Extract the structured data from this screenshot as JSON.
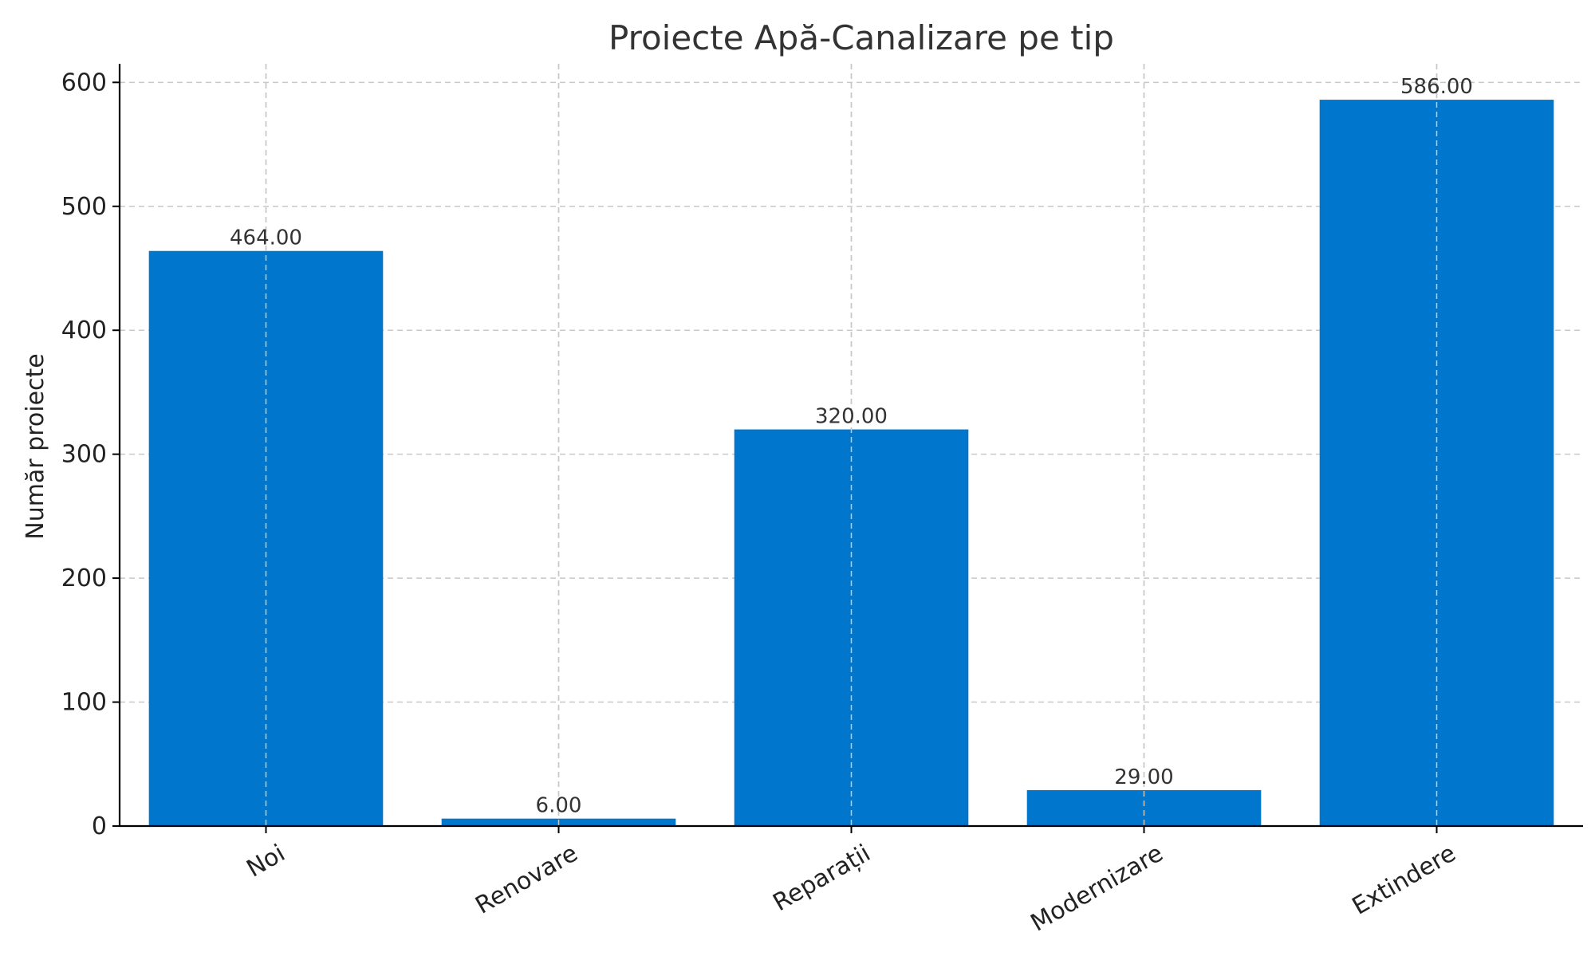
{
  "chart_data": {
    "type": "bar",
    "title": "Proiecte Apă-Canalizare pe tip",
    "xlabel": "",
    "ylabel": "Număr proiecte",
    "categories": [
      "Noi",
      "Renovare",
      "Reparații",
      "Modernizare",
      "Extindere"
    ],
    "values": [
      464,
      6,
      320,
      29,
      586
    ],
    "data_labels": [
      "464.00",
      "6.00",
      "320.00",
      "29.00",
      "586.00"
    ],
    "ylim": [
      0,
      615
    ],
    "yticks": [
      0,
      100,
      200,
      300,
      400,
      500,
      600
    ],
    "grid": true,
    "legend": "none",
    "bar_color": "#0077CC",
    "category_label_rotation_deg": -30
  }
}
